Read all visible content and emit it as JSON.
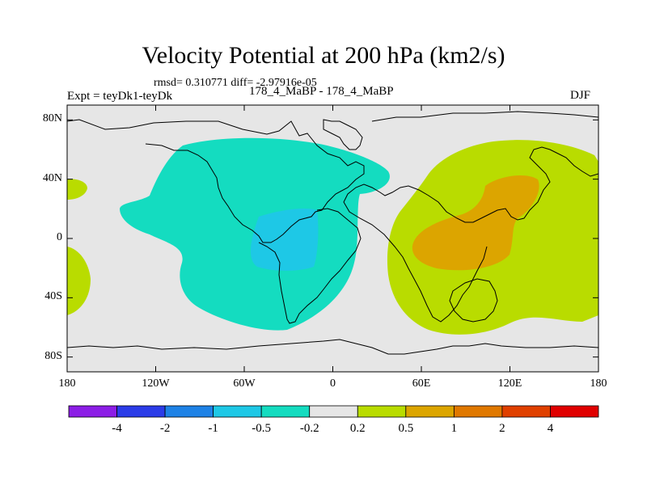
{
  "title": "Velocity Potential at 200 hPa (km2/s)",
  "stats": "rmsd= 0.310771 diff= -2.97916e-05",
  "left_label": "Expt = teyDk1-teyDk",
  "center_label": "178_4_MaBP - 178_4_MaBP",
  "season": "DJF",
  "lat_ticks": [
    {
      "label": "80N",
      "lat": 80
    },
    {
      "label": "40N",
      "lat": 40
    },
    {
      "label": "0",
      "lat": 0
    },
    {
      "label": "40S",
      "lat": -40
    },
    {
      "label": "80S",
      "lat": -80
    }
  ],
  "lon_ticks": [
    {
      "label": "180",
      "lon": -180
    },
    {
      "label": "120W",
      "lon": -120
    },
    {
      "label": "60W",
      "lon": -60
    },
    {
      "label": "0",
      "lon": 0
    },
    {
      "label": "60E",
      "lon": 60
    },
    {
      "label": "120E",
      "lon": 120
    },
    {
      "label": "180",
      "lon": 180
    }
  ],
  "colorbar": {
    "colors": [
      "#8c1ee6",
      "#2b3ce8",
      "#1e82e6",
      "#1ec8e6",
      "#14dcc0",
      "#e6e6e6",
      "#b9dc00",
      "#dca500",
      "#e07800",
      "#e04000",
      "#e00000"
    ],
    "labels": [
      "-4",
      "-2",
      "-1",
      "-0.5",
      "-0.2",
      "0.2",
      "0.5",
      "1",
      "2",
      "4"
    ]
  },
  "chart_data": {
    "type": "contour-map",
    "variable": "Velocity Potential at 200 hPa",
    "units": "km2/s",
    "projection": "cylindrical equidistant",
    "lon_range": [
      -180,
      180
    ],
    "lat_range": [
      -90,
      90
    ],
    "contour_levels": [
      -4,
      -2,
      -1,
      -0.5,
      -0.2,
      0.2,
      0.5,
      1,
      2,
      4
    ],
    "regions": [
      {
        "name": "americas-negative",
        "range": [
          -0.5,
          -0.2
        ],
        "approx_center": [
          -60,
          10
        ]
      },
      {
        "name": "south-america-core",
        "range": [
          -1,
          -0.5
        ],
        "approx_center": [
          -35,
          -5
        ]
      },
      {
        "name": "eurasia-africa-positive",
        "range": [
          0.2,
          0.5
        ],
        "approx_center": [
          85,
          0
        ]
      },
      {
        "name": "indian-ocean-core",
        "range": [
          0.5,
          1
        ],
        "approx_center": [
          75,
          5
        ]
      },
      {
        "name": "west-pacific-edge",
        "range": [
          0.2,
          0.5
        ],
        "approx_center": [
          -175,
          30
        ]
      },
      {
        "name": "south-pacific-edge",
        "range": [
          0.2,
          0.5
        ],
        "approx_center": [
          -175,
          -20
        ]
      }
    ]
  }
}
